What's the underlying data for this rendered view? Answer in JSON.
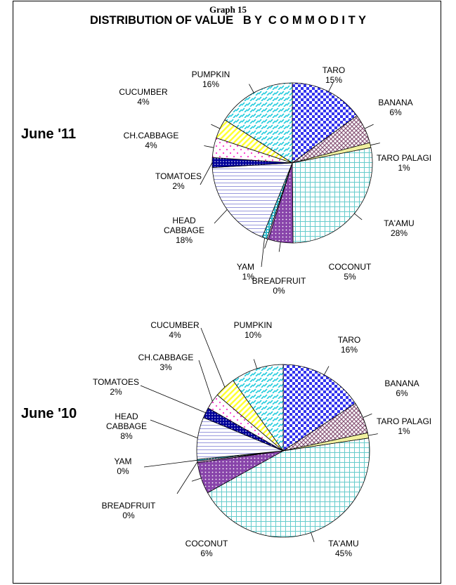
{
  "header": {
    "graph_label": "Graph 15",
    "title": "DISTRIBUTION OF VALUE   B Y  C O M M O D I T Y"
  },
  "colors": {
    "taro": "#3333ee",
    "banana": "#885577",
    "taro_palagi": "#f0f0a0",
    "taamu": "#66cccc",
    "coconut": "#8844aa",
    "breadfruit": "#f0c0f0",
    "yam": "#33bbcc",
    "head_cabbage": "#9999dd",
    "tomatoes": "#000099",
    "ch_cabbage": "#ff33cc",
    "cucumber": "#ffff33",
    "pumpkin": "#22ccdd"
  },
  "chart_data": [
    {
      "type": "pie",
      "label": "June '11",
      "slices": [
        {
          "name": "TARO",
          "pct": "15%",
          "value": 15
        },
        {
          "name": "BANANA",
          "pct": "6%",
          "value": 6
        },
        {
          "name": "TARO PALAGI",
          "pct": "1%",
          "value": 1
        },
        {
          "name": "TA'AMU",
          "pct": "28%",
          "value": 28
        },
        {
          "name": "COCONUT",
          "pct": "5%",
          "value": 5
        },
        {
          "name": "BREADFRUIT",
          "pct": "0%",
          "value": 0.3
        },
        {
          "name": "YAM",
          "pct": "1%",
          "value": 1
        },
        {
          "name": "HEAD CABBAGE",
          "pct": "18%",
          "value": 18
        },
        {
          "name": "TOMATOES",
          "pct": "2%",
          "value": 2
        },
        {
          "name": "CH.CABBAGE",
          "pct": "4%",
          "value": 4
        },
        {
          "name": "CUCUMBER",
          "pct": "4%",
          "value": 4
        },
        {
          "name": "PUMPKIN",
          "pct": "16%",
          "value": 16
        }
      ]
    },
    {
      "type": "pie",
      "label": "June '10",
      "slices": [
        {
          "name": "TARO",
          "pct": "16%",
          "value": 16
        },
        {
          "name": "BANANA",
          "pct": "6%",
          "value": 6
        },
        {
          "name": "TARO PALAGI",
          "pct": "1%",
          "value": 1
        },
        {
          "name": "TA'AMU",
          "pct": "45%",
          "value": 45
        },
        {
          "name": "COCONUT",
          "pct": "6%",
          "value": 6
        },
        {
          "name": "BREADFRUIT",
          "pct": "0%",
          "value": 0.3
        },
        {
          "name": "YAM",
          "pct": "0%",
          "value": 0.3
        },
        {
          "name": "HEAD CABBAGE",
          "pct": "8%",
          "value": 8
        },
        {
          "name": "TOMATOES",
          "pct": "2%",
          "value": 2
        },
        {
          "name": "CH.CABBAGE",
          "pct": "3%",
          "value": 3
        },
        {
          "name": "CUCUMBER",
          "pct": "4%",
          "value": 4
        },
        {
          "name": "PUMPKIN",
          "pct": "10%",
          "value": 10
        }
      ]
    }
  ]
}
